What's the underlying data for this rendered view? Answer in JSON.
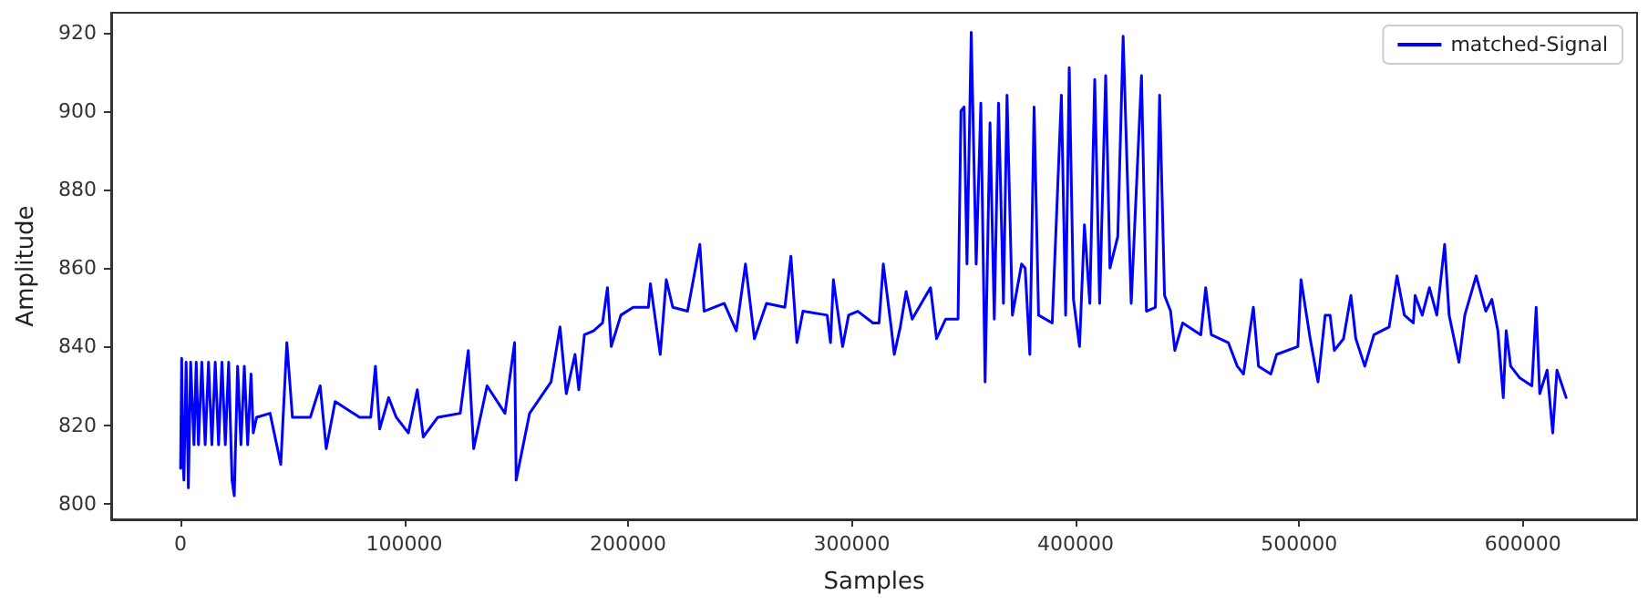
{
  "chart_data": {
    "type": "line",
    "xlabel": "Samples",
    "ylabel": "Amplitude",
    "xlim": [
      -31000,
      651000
    ],
    "ylim": [
      796,
      925
    ],
    "xticks": [
      0,
      100000,
      200000,
      300000,
      400000,
      500000,
      600000
    ],
    "yticks": [
      800,
      820,
      840,
      860,
      880,
      900,
      920
    ],
    "grid": false,
    "legend": "top right",
    "marker": "none",
    "line_style": "solid",
    "series": [
      {
        "name": "matched-Signal",
        "color": "#0000ff",
        "x": [
          0,
          500,
          1000,
          1500,
          2500,
          3500,
          4500,
          6000,
          7000,
          8000,
          9500,
          11000,
          12500,
          14000,
          15500,
          17000,
          18500,
          20000,
          21500,
          23000,
          24000,
          25500,
          27000,
          28500,
          30000,
          31500,
          32500,
          34000,
          40000,
          44800,
          47500,
          50000,
          58000,
          62400,
          65100,
          69100,
          80000,
          85000,
          87100,
          89000,
          93000,
          96400,
          101800,
          105800,
          108500,
          115000,
          125000,
          128600,
          131000,
          137000,
          145000,
          149300,
          150000,
          156000,
          165600,
          169600,
          172400,
          176300,
          178000,
          180500,
          184600,
          188600,
          190800,
          192500,
          196800,
          202300,
          209100,
          210000,
          214400,
          217100,
          220000,
          226600,
          232100,
          234000,
          243000,
          248400,
          252500,
          256500,
          261900,
          270100,
          272800,
          275500,
          278200,
          289000,
          290500,
          291800,
          295900,
          298600,
          302700,
          309500,
          312200,
          314100,
          317600,
          319000,
          321700,
          324300,
          327000,
          335200,
          337900,
          342000,
          347500,
          348800,
          350200,
          351500,
          353400,
          355600,
          357700,
          359600,
          361800,
          363700,
          365600,
          367800,
          369400,
          371800,
          375900,
          377500,
          379600,
          381500,
          383500,
          389600,
          393700,
          395600,
          397200,
          399100,
          401800,
          404000,
          406400,
          408600,
          410800,
          413500,
          415400,
          418900,
          421300,
          424900,
          429500,
          431700,
          435700,
          437600,
          439800,
          442500,
          444400,
          447900,
          456000,
          458200,
          460700,
          468300,
          472300,
          475100,
          479500,
          481800,
          487300,
          489900,
          499400,
          500800,
          504900,
          508400,
          511600,
          513800,
          515700,
          519800,
          523100,
          525300,
          529300,
          533400,
          540200,
          543700,
          547000,
          551000,
          551800,
          555000,
          558200,
          561500,
          565000,
          567000,
          571400,
          574000,
          579100,
          583400,
          586100,
          588800,
          591200,
          592500,
          594500,
          598600,
          604000,
          605900,
          607500,
          610800,
          613300,
          615200,
          619300
        ],
        "values": [
          809,
          837,
          812,
          806,
          836,
          804,
          836,
          815,
          836,
          815,
          836,
          815,
          836,
          815,
          836,
          815,
          836,
          815,
          836,
          806,
          802,
          835,
          815,
          835,
          815,
          833,
          818,
          822,
          823,
          810,
          841,
          822,
          822,
          830,
          814,
          826,
          822,
          822,
          835,
          819,
          827,
          822,
          818,
          829,
          817,
          822,
          823,
          839,
          814,
          830,
          823,
          841,
          806,
          823,
          831,
          845,
          828,
          838,
          829,
          843,
          844,
          846,
          855,
          840,
          848,
          850,
          850,
          856,
          838,
          857,
          850,
          849,
          866,
          849,
          851,
          844,
          861,
          842,
          851,
          850,
          863,
          841,
          849,
          848,
          841,
          857,
          840,
          848,
          849,
          846,
          846,
          861,
          845,
          838,
          845,
          854,
          847,
          855,
          842,
          847,
          847,
          900,
          901,
          861,
          920,
          861,
          902,
          831,
          897,
          847,
          902,
          851,
          904,
          848,
          861,
          860,
          838,
          901,
          848,
          846,
          904,
          848,
          911,
          852,
          840,
          871,
          851,
          908,
          851,
          909,
          860,
          868,
          919,
          851,
          909,
          849,
          850,
          904,
          853,
          849,
          839,
          846,
          843,
          855,
          843,
          841,
          835,
          833,
          850,
          835,
          833,
          838,
          840,
          857,
          842,
          831,
          848,
          848,
          839,
          842,
          853,
          842,
          835,
          843,
          845,
          858,
          848,
          846,
          853,
          848,
          855,
          848,
          866,
          848,
          836,
          848,
          858,
          849,
          852,
          844,
          827,
          844,
          835,
          832,
          830,
          850,
          828,
          834,
          818,
          834,
          827
        ]
      }
    ]
  }
}
